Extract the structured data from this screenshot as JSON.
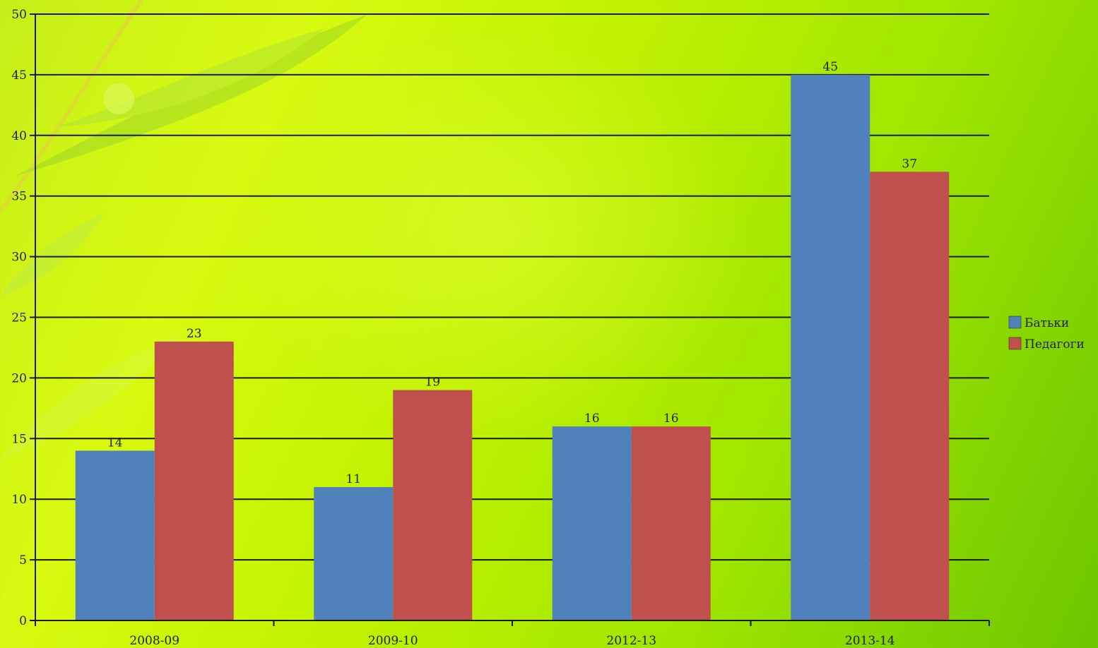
{
  "chart_data": {
    "type": "bar",
    "categories": [
      "2008-09",
      "2009-10",
      "2012-13",
      "2013-14"
    ],
    "series": [
      {
        "name": "Батьки",
        "values": [
          14,
          11,
          16,
          45
        ],
        "color": "#4f81bd"
      },
      {
        "name": "Педагоги",
        "values": [
          23,
          19,
          16,
          37
        ],
        "color": "#c0504d"
      }
    ],
    "ylim": [
      0,
      50
    ],
    "yticks": [
      "0",
      "5",
      "10",
      "15",
      "20",
      "25",
      "30",
      "35",
      "40",
      "45",
      "50"
    ],
    "grid": true,
    "legend_position": "right",
    "data_labels": true
  }
}
